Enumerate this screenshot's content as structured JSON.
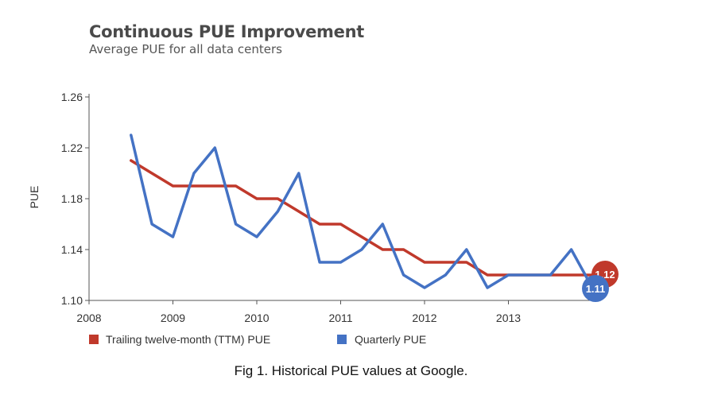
{
  "chart_data": {
    "type": "line",
    "title": "Continuous PUE Improvement",
    "subtitle": "Average PUE for all data centers",
    "xlabel": "",
    "ylabel": "PUE",
    "xlim": [
      2008,
      2014.1
    ],
    "ylim": [
      1.1,
      1.265
    ],
    "x_ticks": [
      2008,
      2009,
      2010,
      2011,
      2012,
      2013
    ],
    "y_ticks": [
      1.1,
      1.14,
      1.18,
      1.22,
      1.26
    ],
    "y_tick_labels": [
      "1.10",
      "1.14",
      "1.18",
      "1.22",
      "1.26"
    ],
    "grid": false,
    "legend_position": "bottom",
    "series": [
      {
        "name": "Trailing twelve-month (TTM) PUE",
        "color": "#c0392b",
        "x": [
          2008.5,
          2008.75,
          2009.0,
          2009.25,
          2009.5,
          2009.75,
          2010.0,
          2010.25,
          2010.5,
          2010.75,
          2011.0,
          2011.25,
          2011.5,
          2011.75,
          2012.0,
          2012.25,
          2012.5,
          2012.75,
          2013.0,
          2013.25,
          2013.5,
          2013.75,
          2014.0
        ],
        "values": [
          1.21,
          1.2,
          1.19,
          1.19,
          1.19,
          1.19,
          1.18,
          1.18,
          1.17,
          1.16,
          1.16,
          1.15,
          1.14,
          1.14,
          1.13,
          1.13,
          1.13,
          1.12,
          1.12,
          1.12,
          1.12,
          1.12,
          1.12
        ],
        "end_label": "1.12"
      },
      {
        "name": "Quarterly PUE",
        "color": "#4472c4",
        "x": [
          2008.5,
          2008.75,
          2009.0,
          2009.25,
          2009.5,
          2009.75,
          2010.0,
          2010.25,
          2010.5,
          2010.75,
          2011.0,
          2011.25,
          2011.5,
          2011.75,
          2012.0,
          2012.25,
          2012.5,
          2012.75,
          2013.0,
          2013.25,
          2013.5,
          2013.75,
          2014.0
        ],
        "values": [
          1.23,
          1.16,
          1.15,
          1.2,
          1.22,
          1.16,
          1.15,
          1.17,
          1.2,
          1.13,
          1.13,
          1.14,
          1.16,
          1.12,
          1.11,
          1.12,
          1.14,
          1.11,
          1.12,
          1.12,
          1.12,
          1.14,
          1.11
        ],
        "end_label": "1.11"
      }
    ]
  },
  "caption": "Fig 1.  Historical PUE values at Google."
}
